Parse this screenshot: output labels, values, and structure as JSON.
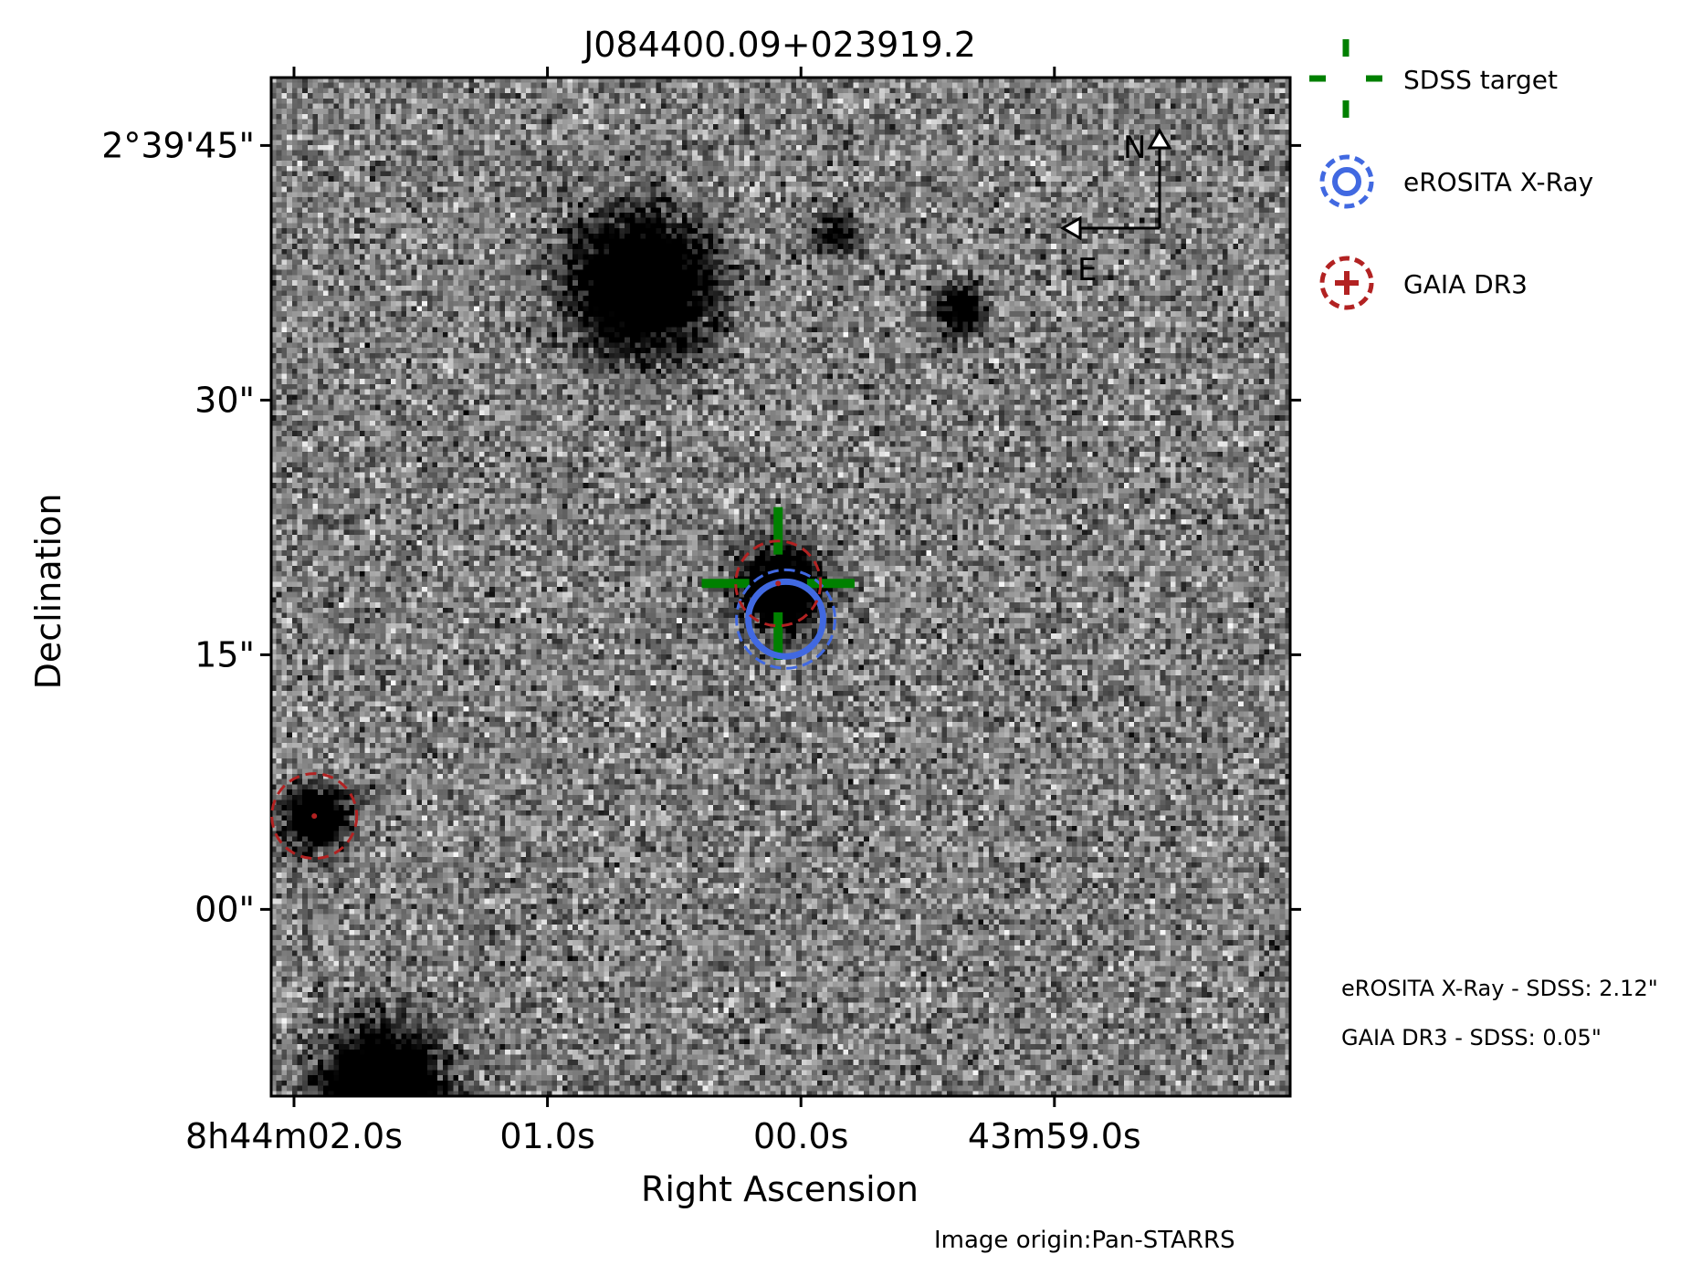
{
  "chart_data": {
    "type": "image",
    "title": "J084400.09+023919.2",
    "xlabel": "Right Ascension",
    "ylabel": "Declination",
    "credit": "Image origin:Pan-STARRS",
    "xticks": [
      {
        "label": "8h44m02.0s",
        "ra_offset_s": 2.0
      },
      {
        "label": "01.0s",
        "ra_offset_s": 1.0
      },
      {
        "label": "00.0s",
        "ra_offset_s": 0.0
      },
      {
        "label": "43m59.0s",
        "ra_offset_s": -1.0
      }
    ],
    "yticks": [
      {
        "label": "2°39'45\"",
        "dec_arcsec": 45
      },
      {
        "label": "30\"",
        "dec_arcsec": 30
      },
      {
        "label": "15\"",
        "dec_arcsec": 15
      },
      {
        "label": "00\"",
        "dec_arcsec": 0
      }
    ],
    "xlim_ra_offset_s": [
      2.09,
      -1.93
    ],
    "ylim_dec_arcsec": [
      -11.0,
      49.0
    ],
    "grid": false,
    "compass": {
      "north_label": "N",
      "east_label": "E"
    },
    "legend": {
      "placement": "right-top",
      "entries": [
        {
          "label": "SDSS target",
          "color": "#008000",
          "marker": "dashed-cross"
        },
        {
          "label": "eROSITA X-Ray",
          "color": "#4169e1",
          "marker": "dashed-circle"
        },
        {
          "label": "GAIA DR3",
          "color": "#b22222",
          "marker": "dashed-circle-plus"
        }
      ]
    },
    "markers": [
      {
        "kind": "sdss-target",
        "ra_offset_s": 0.09,
        "dec_arcsec": 19.2,
        "color": "#008000"
      },
      {
        "kind": "erosita-xray",
        "ra_offset_s": 0.06,
        "dec_arcsec": 17.1,
        "color": "#4169e1"
      },
      {
        "kind": "gaia-dr3",
        "ra_offset_s": 0.09,
        "dec_arcsec": 19.2,
        "color": "#b22222"
      },
      {
        "kind": "gaia-dr3",
        "ra_offset_s": 1.92,
        "dec_arcsec": 5.5,
        "color": "#b22222"
      }
    ],
    "sources": [
      {
        "ra_offset_s": 0.09,
        "dec_arcsec": 19.0,
        "strength": 1.0,
        "sigma_arcsec": 1.6
      },
      {
        "ra_offset_s": 1.92,
        "dec_arcsec": 5.5,
        "strength": 0.95,
        "sigma_arcsec": 1.2
      },
      {
        "ra_offset_s": 0.64,
        "dec_arcsec": 37.0,
        "strength": 0.95,
        "sigma_arcsec": 2.7
      },
      {
        "ra_offset_s": 1.66,
        "dec_arcsec": -10.5,
        "strength": 1.0,
        "sigma_arcsec": 2.4
      },
      {
        "ra_offset_s": -0.62,
        "dec_arcsec": 35.5,
        "strength": 0.6,
        "sigma_arcsec": 1.0
      },
      {
        "ra_offset_s": -0.13,
        "dec_arcsec": 40.0,
        "strength": 0.45,
        "sigma_arcsec": 0.9
      }
    ],
    "separations": [
      {
        "text": "eROSITA X-Ray - SDSS: 2.12\""
      },
      {
        "text": "GAIA DR3 - SDSS: 0.05\""
      }
    ]
  }
}
